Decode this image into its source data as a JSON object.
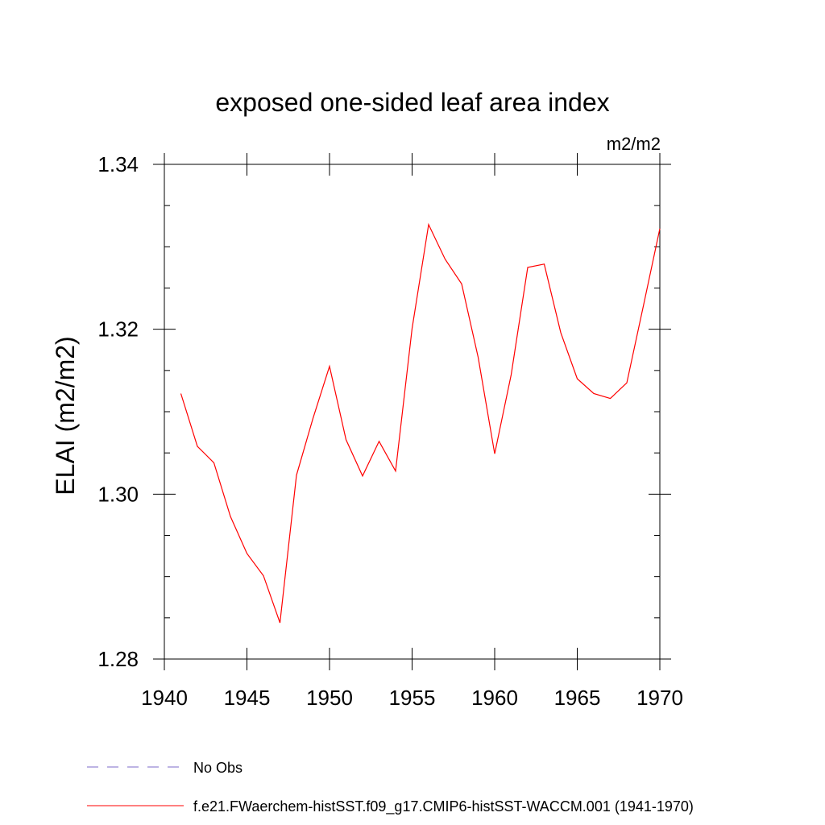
{
  "chart_data": {
    "type": "line",
    "title": "exposed one-sided leaf area index",
    "units_label": "m2/m2",
    "ylabel": "ELAI  (m2/m2)",
    "xlabel": "",
    "xlim": [
      1940,
      1970
    ],
    "ylim": [
      1.28,
      1.34
    ],
    "x_ticks": [
      1940,
      1945,
      1950,
      1955,
      1960,
      1965,
      1970
    ],
    "y_ticks": [
      1.28,
      1.3,
      1.32,
      1.34
    ],
    "y_tick_labels": [
      "1.28",
      "1.30",
      "1.32",
      "1.34"
    ],
    "x_tick_labels": [
      "1940",
      "1945",
      "1950",
      "1955",
      "1960",
      "1965",
      "1970"
    ],
    "grid": false,
    "legend_position": "bottom",
    "series": [
      {
        "name": "f.e21.FWaerchem-histSST.f09_g17.CMIP6-histSST-WACCM.001 (1941-1970)",
        "color": "#ff0000",
        "style": "solid",
        "x": [
          1941,
          1942,
          1943,
          1944,
          1945,
          1946,
          1947,
          1948,
          1949,
          1950,
          1951,
          1952,
          1953,
          1954,
          1955,
          1956,
          1957,
          1958,
          1959,
          1960,
          1961,
          1962,
          1963,
          1964,
          1965,
          1966,
          1967,
          1968,
          1969,
          1970
        ],
        "y": [
          1.3122,
          1.3058,
          1.3038,
          1.2973,
          1.2928,
          1.2901,
          1.2844,
          1.3023,
          1.3092,
          1.3155,
          1.3066,
          1.3022,
          1.3064,
          1.3028,
          1.3201,
          1.3327,
          1.3285,
          1.3255,
          1.3166,
          1.3049,
          1.3145,
          1.3275,
          1.3279,
          1.3196,
          1.314,
          1.3122,
          1.3116,
          1.3135,
          1.3228,
          1.3322
        ]
      }
    ],
    "legend": [
      {
        "label": "No Obs",
        "color": "#7b68c9",
        "style": "dashed"
      },
      {
        "label": "f.e21.FWaerchem-histSST.f09_g17.CMIP6-histSST-WACCM.001 (1941-1970)",
        "color": "#ff0000",
        "style": "solid"
      }
    ]
  }
}
